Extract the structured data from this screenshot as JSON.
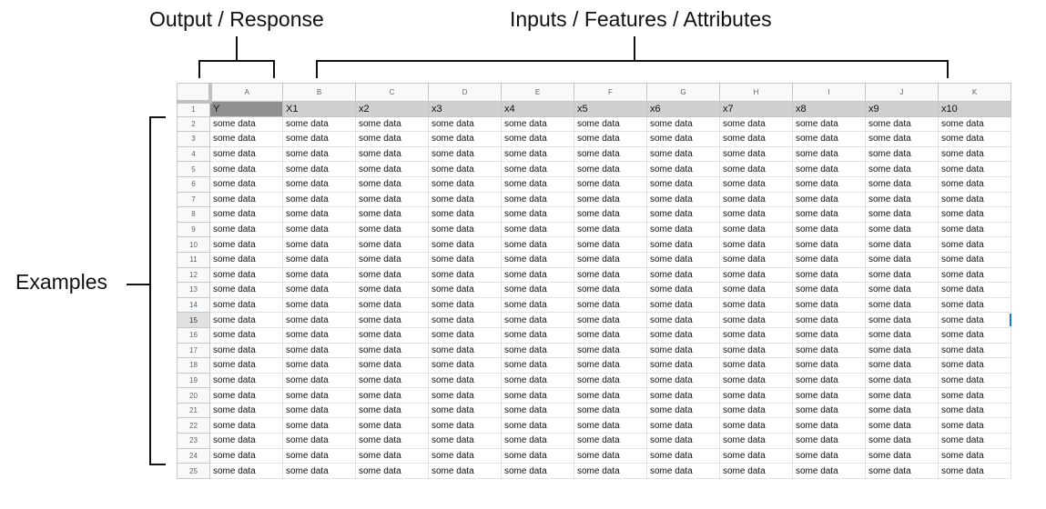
{
  "annotations": {
    "output": "Output / Response",
    "inputs": "Inputs / Features / Attributes",
    "examples": "Examples"
  },
  "sheet": {
    "column_letters": [
      "A",
      "B",
      "C",
      "D",
      "E",
      "F",
      "G",
      "H",
      "I",
      "J",
      "K"
    ],
    "header_values": [
      "Y",
      "X1",
      "x2",
      "x3",
      "x4",
      "x5",
      "x6",
      "x7",
      "x8",
      "x9",
      "x10"
    ],
    "row_numbers": [
      "1",
      "2",
      "3",
      "4",
      "5",
      "6",
      "7",
      "8",
      "9",
      "10",
      "11",
      "12",
      "13",
      "14",
      "15",
      "16",
      "17",
      "18",
      "19",
      "20",
      "21",
      "22",
      "23",
      "24",
      "25"
    ],
    "cell_value": "some data",
    "active_row": "15",
    "colors": {
      "header_fill": "#cfcfcf",
      "y_header_fill": "#8f8f8f",
      "grid_line": "#e2e3e3",
      "active_marker": "#1a73e8"
    }
  }
}
